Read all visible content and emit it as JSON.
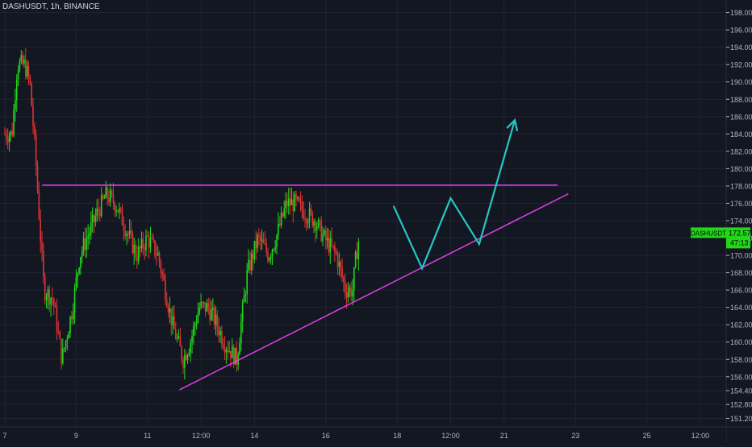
{
  "header": {
    "symbol_title": "DASHUSDT, 1h, BINANCE"
  },
  "price_badge": {
    "symbol": "DASHUSDT",
    "price": "172.57",
    "countdown": "47:13"
  },
  "colors": {
    "background": "#131722",
    "grid": "#1f2433",
    "axis_text": "#b2b5be",
    "up": "#22d619",
    "down": "#e03333",
    "resistance": "#e040e8",
    "trendline": "#e040e8",
    "projection": "#26c6c6",
    "badge": "#22d619"
  },
  "chart_data": {
    "type": "candlestick",
    "title": "DASHUSDT, 1h, BINANCE",
    "ylim": [
      150.5,
      198.8
    ],
    "y_ticks": [
      "151.20",
      "152.80",
      "154.40",
      "156.00",
      "158.00",
      "160.00",
      "162.00",
      "164.00",
      "166.00",
      "168.00",
      "170.00",
      "172.00",
      "174.00",
      "176.00",
      "178.00",
      "180.00",
      "182.00",
      "184.00",
      "186.00",
      "188.00",
      "190.00",
      "192.00",
      "194.00",
      "196.00",
      "198.00"
    ],
    "x_ticks": [
      {
        "label": "7",
        "day": 7.0
      },
      {
        "label": "9",
        "day": 9.0
      },
      {
        "label": "11",
        "day": 11.0
      },
      {
        "label": "12:00",
        "day": 12.5
      },
      {
        "label": "14",
        "day": 14.0
      },
      {
        "label": "16",
        "day": 16.0
      },
      {
        "label": "18",
        "day": 18.0
      },
      {
        "label": "12:00",
        "day": 19.5
      },
      {
        "label": "21",
        "day": 21.0
      },
      {
        "label": "23",
        "day": 23.0
      },
      {
        "label": "25",
        "day": 25.0
      },
      {
        "label": "12:00",
        "day": 26.5
      }
    ],
    "price_path": [
      [
        7.0,
        184
      ],
      [
        7.2,
        184
      ],
      [
        7.35,
        192
      ],
      [
        7.55,
        192
      ],
      [
        7.7,
        190
      ],
      [
        7.85,
        182
      ],
      [
        8.0,
        172
      ],
      [
        8.1,
        166
      ],
      [
        8.35,
        165
      ],
      [
        8.6,
        158
      ],
      [
        8.9,
        164
      ],
      [
        9.1,
        170
      ],
      [
        9.3,
        172
      ],
      [
        9.6,
        175
      ],
      [
        9.85,
        177
      ],
      [
        10.1,
        176
      ],
      [
        10.4,
        173
      ],
      [
        10.7,
        170
      ],
      [
        11.0,
        172
      ],
      [
        11.3,
        170
      ],
      [
        11.5,
        166
      ],
      [
        11.7,
        162
      ],
      [
        12.0,
        158
      ],
      [
        12.2,
        160
      ],
      [
        12.45,
        164
      ],
      [
        12.7,
        164
      ],
      [
        12.95,
        162
      ],
      [
        13.15,
        160
      ],
      [
        13.5,
        158
      ],
      [
        13.8,
        168
      ],
      [
        14.1,
        172
      ],
      [
        14.4,
        170
      ],
      [
        14.6,
        172
      ],
      [
        14.9,
        176
      ],
      [
        15.15,
        176
      ],
      [
        15.4,
        175
      ],
      [
        15.7,
        174
      ],
      [
        15.95,
        172
      ],
      [
        16.3,
        170
      ],
      [
        16.55,
        166
      ],
      [
        16.75,
        166
      ],
      [
        16.85,
        170
      ],
      [
        16.95,
        172.5
      ]
    ],
    "resistance_line": {
      "from": [
        8.05,
        178.1
      ],
      "to": [
        22.5,
        178.1
      ]
    },
    "ascending_trendline": {
      "from": [
        11.9,
        154.5
      ],
      "to": [
        22.8,
        177.1
      ]
    },
    "projection_path": [
      [
        17.9,
        175.7
      ],
      [
        18.7,
        168.5
      ],
      [
        19.5,
        176.6
      ],
      [
        20.3,
        171.3
      ],
      [
        21.3,
        185.6
      ]
    ]
  }
}
